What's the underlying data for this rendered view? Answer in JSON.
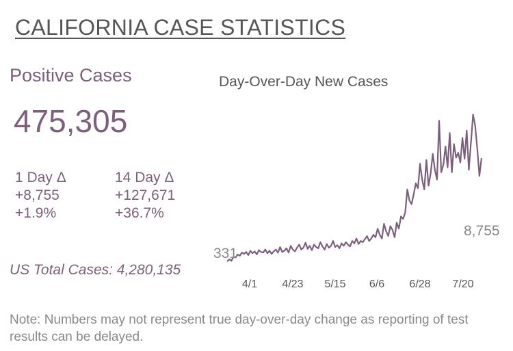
{
  "header": {
    "title": "CALIFORNIA CASE STATISTICS"
  },
  "stats": {
    "positive_label": "Positive Cases",
    "positive_value": "475,305",
    "one_day": {
      "label": "1 Day Δ",
      "abs": "+8,755",
      "pct": "+1.9%"
    },
    "fourteen_day": {
      "label": "14 Day Δ",
      "abs": "+127,671",
      "pct": "+36.7%"
    },
    "us_total": "US Total Cases: 4,280,135"
  },
  "note": "Note: Numbers may not represent true day-over-day change as reporting of test results can be delayed.",
  "colors": {
    "line": "#7b5f7b",
    "accent_text": "#7b5f7b",
    "muted_text": "#888888"
  },
  "chart_data": {
    "type": "line",
    "title": "Day-Over-Day New Cases",
    "xlabel": "",
    "ylabel": "",
    "x_ticks": [
      "4/1",
      "4/23",
      "5/15",
      "6/6",
      "6/28",
      "7/20"
    ],
    "start_label": "331",
    "end_label": "8,755",
    "grid": false,
    "ylim": [
      0,
      13000
    ],
    "series": [
      {
        "values": [
          331,
          500,
          380,
          700,
          650,
          900,
          800,
          1050,
          950,
          1100,
          850,
          1200,
          1000,
          1150,
          900,
          1250,
          1100,
          1050,
          1300,
          1000,
          1200,
          950,
          1150,
          1300,
          1050,
          1500,
          1100,
          1200,
          1400,
          1050,
          1600,
          1300,
          1150,
          1450,
          1700,
          1300,
          1450,
          1850,
          1350,
          1600,
          1250,
          1700,
          1500,
          1400,
          1900,
          1550,
          1300,
          1750,
          1450,
          1600,
          2000,
          1500,
          1650,
          1400,
          1800,
          1600,
          1900,
          1700,
          1550,
          2000,
          1800,
          2200,
          1750,
          2000,
          1900,
          2150,
          2400,
          2000,
          2200,
          2500,
          2300,
          3000,
          2500,
          2200,
          3400,
          2800,
          2400,
          3200,
          2900,
          2300,
          3500,
          3000,
          4000,
          3800,
          4300,
          6200,
          5300,
          5000,
          5800,
          6700,
          6300,
          8300,
          7000,
          6200,
          8600,
          6500,
          7500,
          9100,
          7800,
          7000,
          11800,
          7600,
          8200,
          9700,
          8000,
          10800,
          7600,
          9900,
          8800,
          9200,
          8400,
          10400,
          8700,
          11000,
          7800,
          10000,
          12300,
          11400,
          9500,
          7300,
          8755
        ]
      }
    ]
  }
}
